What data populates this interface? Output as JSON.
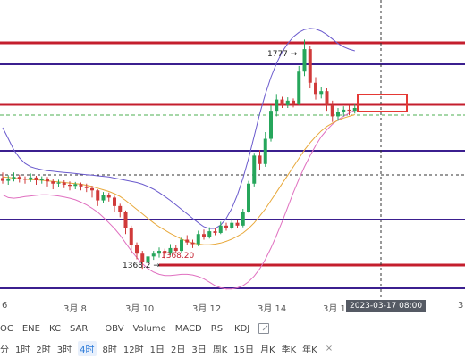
{
  "chart_data": {
    "type": "candlestick",
    "annotations": {
      "high_label": "1777 →",
      "low_label": "1368.2 →",
      "low_price_label": "1368.20"
    },
    "date_labels": [
      "6",
      "3月 8",
      "3月 10",
      "3月 12",
      "3月 14",
      "3月 1",
      "3"
    ],
    "crosshair_time": "2023-03-17 08:00",
    "candles": [
      [
        1530,
        1525,
        1540,
        1520
      ],
      [
        1525,
        1528,
        1535,
        1518
      ],
      [
        1528,
        1532,
        1540,
        1524
      ],
      [
        1532,
        1529,
        1536,
        1522
      ],
      [
        1529,
        1527,
        1533,
        1520
      ],
      [
        1527,
        1531,
        1538,
        1523
      ],
      [
        1531,
        1526,
        1534,
        1518
      ],
      [
        1526,
        1528,
        1533,
        1520
      ],
      [
        1528,
        1524,
        1532,
        1515
      ],
      [
        1524,
        1520,
        1528,
        1510
      ],
      [
        1520,
        1522,
        1527,
        1514
      ],
      [
        1522,
        1518,
        1526,
        1512
      ],
      [
        1518,
        1516,
        1524,
        1508
      ],
      [
        1516,
        1519,
        1523,
        1510
      ],
      [
        1519,
        1515,
        1522,
        1508
      ],
      [
        1515,
        1512,
        1520,
        1505
      ],
      [
        1512,
        1508,
        1516,
        1495
      ],
      [
        1508,
        1490,
        1510,
        1480
      ],
      [
        1490,
        1500,
        1505,
        1486
      ],
      [
        1500,
        1495,
        1504,
        1488
      ],
      [
        1495,
        1480,
        1498,
        1470
      ],
      [
        1480,
        1470,
        1484,
        1460
      ],
      [
        1470,
        1440,
        1472,
        1430
      ],
      [
        1440,
        1410,
        1445,
        1395
      ],
      [
        1410,
        1395,
        1415,
        1385
      ],
      [
        1395,
        1380,
        1400,
        1368
      ],
      [
        1380,
        1390,
        1395,
        1372
      ],
      [
        1390,
        1395,
        1400,
        1384
      ],
      [
        1395,
        1400,
        1406,
        1388
      ],
      [
        1400,
        1395,
        1404,
        1386
      ],
      [
        1395,
        1405,
        1412,
        1392
      ],
      [
        1405,
        1400,
        1410,
        1395
      ],
      [
        1400,
        1420,
        1425,
        1396
      ],
      [
        1420,
        1415,
        1428,
        1410
      ],
      [
        1415,
        1412,
        1420,
        1405
      ],
      [
        1412,
        1430,
        1436,
        1408
      ],
      [
        1430,
        1425,
        1438,
        1420
      ],
      [
        1425,
        1435,
        1442,
        1422
      ],
      [
        1435,
        1432,
        1440,
        1428
      ],
      [
        1432,
        1445,
        1452,
        1430
      ],
      [
        1445,
        1440,
        1450,
        1436
      ],
      [
        1440,
        1450,
        1458,
        1438
      ],
      [
        1450,
        1445,
        1455,
        1440
      ],
      [
        1445,
        1470,
        1475,
        1442
      ],
      [
        1470,
        1520,
        1525,
        1468
      ],
      [
        1520,
        1570,
        1575,
        1515
      ],
      [
        1570,
        1555,
        1580,
        1545
      ],
      [
        1555,
        1600,
        1612,
        1550
      ],
      [
        1600,
        1650,
        1660,
        1595
      ],
      [
        1650,
        1670,
        1680,
        1640
      ],
      [
        1670,
        1660,
        1675,
        1655
      ],
      [
        1660,
        1668,
        1674,
        1655
      ],
      [
        1668,
        1662,
        1672,
        1656
      ],
      [
        1662,
        1720,
        1730,
        1660
      ],
      [
        1720,
        1760,
        1777,
        1712
      ],
      [
        1760,
        1700,
        1765,
        1690
      ],
      [
        1700,
        1680,
        1710,
        1670
      ],
      [
        1680,
        1685,
        1692,
        1672
      ],
      [
        1685,
        1660,
        1690,
        1650
      ],
      [
        1660,
        1640,
        1668,
        1630
      ],
      [
        1640,
        1648,
        1655,
        1632
      ],
      [
        1648,
        1652,
        1658,
        1640
      ],
      [
        1652,
        1650,
        1660,
        1642
      ],
      [
        1650,
        1655,
        1662,
        1645
      ]
    ],
    "ma": [
      1532,
      1531,
      1530,
      1529,
      1528,
      1527,
      1527,
      1526,
      1525,
      1524,
      1523,
      1522,
      1521,
      1520,
      1519,
      1517,
      1515,
      1512,
      1509,
      1506,
      1502,
      1497,
      1490,
      1482,
      1474,
      1466,
      1458,
      1450,
      1443,
      1437,
      1431,
      1426,
      1421,
      1417,
      1414,
      1412,
      1411,
      1411,
      1412,
      1414,
      1417,
      1421,
      1426,
      1432,
      1440,
      1450,
      1462,
      1475,
      1490,
      1505,
      1520,
      1535,
      1550,
      1565,
      1580,
      1593,
      1604,
      1614,
      1622,
      1628,
      1633,
      1637,
      1640,
      1643
    ],
    "boll_upper": [
      1620,
      1600,
      1580,
      1566,
      1556,
      1550,
      1547,
      1545,
      1543,
      1542,
      1541,
      1540,
      1539,
      1538,
      1537,
      1536,
      1535,
      1534,
      1533,
      1532,
      1530,
      1528,
      1526,
      1524,
      1522,
      1519,
      1515,
      1510,
      1504,
      1497,
      1490,
      1482,
      1474,
      1466,
      1458,
      1450,
      1443,
      1440,
      1440,
      1446,
      1458,
      1476,
      1500,
      1530,
      1565,
      1605,
      1645,
      1680,
      1710,
      1735,
      1755,
      1770,
      1782,
      1790,
      1795,
      1797,
      1796,
      1792,
      1786,
      1778,
      1770,
      1764,
      1760,
      1757
    ],
    "boll_lower": [
      1500,
      1495,
      1494,
      1495,
      1497,
      1498,
      1499,
      1500,
      1500,
      1499,
      1498,
      1496,
      1494,
      1491,
      1487,
      1482,
      1476,
      1469,
      1460,
      1450,
      1440,
      1428,
      1414,
      1400,
      1388,
      1377,
      1368,
      1362,
      1358,
      1356,
      1356,
      1357,
      1358,
      1358,
      1357,
      1354,
      1350,
      1344,
      1338,
      1334,
      1332,
      1332,
      1334,
      1338,
      1345,
      1355,
      1368,
      1385,
      1405,
      1428,
      1452,
      1478,
      1504,
      1528,
      1550,
      1570,
      1588,
      1604,
      1616,
      1626,
      1634,
      1640,
      1646,
      1651
    ]
  },
  "indicators": {
    "items": [
      "OC",
      "ENE",
      "KC",
      "SAR",
      "OBV",
      "Volume",
      "MACD",
      "RSI",
      "KDJ"
    ]
  },
  "timeframes": {
    "items": [
      "分",
      "1时",
      "2时",
      "3时",
      "4时",
      "8时",
      "12时",
      "1日",
      "2日",
      "3日",
      "周K",
      "15日",
      "月K",
      "季K",
      "年K"
    ],
    "active": "4时",
    "close": "×"
  },
  "colors": {
    "up": "#26a65b",
    "down": "#d03a3a",
    "level_red": "#c41e2d",
    "level_purple": "#3b1f8f",
    "green_dashed": "#4caf50",
    "boll_upper": "#6a5acd",
    "boll_lower": "#e070c0",
    "ma": "#e8a83a"
  }
}
